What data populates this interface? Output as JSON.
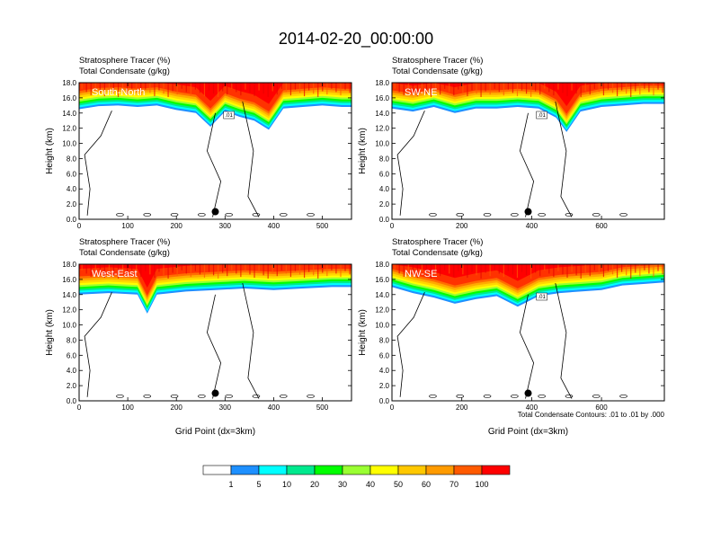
{
  "title": "2014-02-20_00:00:00",
  "footnote": "Total Condensate Contours: .01 to .01 by .000",
  "chart_data": [
    {
      "type": "heatmap",
      "panel_label": "South-North",
      "header": [
        "Stratosphere Tracer   (%)",
        "Total Condensate   (g/kg)"
      ],
      "xlabel": "",
      "ylabel": "Height (km)",
      "xlim": [
        0,
        560
      ],
      "ylim": [
        0,
        18
      ],
      "xticks": [
        0,
        100,
        200,
        300,
        400,
        500
      ],
      "yticks": [
        0,
        2,
        4,
        6,
        8,
        10,
        12,
        14,
        16,
        18
      ],
      "marker_x": 280,
      "contour_label": ".01",
      "tracer_boundary_x": [
        0,
        40,
        80,
        120,
        160,
        200,
        240,
        270,
        300,
        330,
        360,
        390,
        420,
        460,
        500,
        540,
        560
      ],
      "tracer_boundary_km": [
        14.5,
        14.9,
        15.0,
        14.8,
        15.0,
        14.4,
        14.0,
        12.2,
        14.2,
        13.5,
        13.0,
        11.8,
        14.6,
        14.8,
        15.0,
        14.8,
        14.8
      ]
    },
    {
      "type": "heatmap",
      "panel_label": "SW-NE",
      "header": [
        "Stratosphere Tracer   (%)",
        "Total Condensate   (g/kg)"
      ],
      "xlabel": "",
      "ylabel": "Height (km)",
      "xlim": [
        0,
        780
      ],
      "ylim": [
        0,
        18
      ],
      "xticks": [
        0,
        200,
        400,
        600
      ],
      "yticks": [
        0,
        2,
        4,
        6,
        8,
        10,
        12,
        14,
        16,
        18
      ],
      "marker_x": 390,
      "contour_label": ".01",
      "tracer_boundary_x": [
        0,
        60,
        120,
        180,
        240,
        300,
        360,
        420,
        470,
        500,
        540,
        600,
        660,
        720,
        780
      ],
      "tracer_boundary_km": [
        14.6,
        14.2,
        14.8,
        14.0,
        14.6,
        14.6,
        14.8,
        14.6,
        13.4,
        11.5,
        14.2,
        14.8,
        15.0,
        15.2,
        15.2
      ]
    },
    {
      "type": "heatmap",
      "panel_label": "West-East",
      "header": [
        "Stratosphere Tracer   (%)",
        "Total Condensate   (g/kg)"
      ],
      "xlabel": "Grid Point (dx=3km)",
      "ylabel": "Height (km)",
      "xlim": [
        0,
        560
      ],
      "ylim": [
        0,
        18
      ],
      "xticks": [
        0,
        100,
        200,
        300,
        400,
        500
      ],
      "yticks": [
        0,
        2,
        4,
        6,
        8,
        10,
        12,
        14,
        16,
        18
      ],
      "marker_x": 280,
      "contour_label": "",
      "tracer_boundary_x": [
        0,
        60,
        120,
        140,
        160,
        220,
        280,
        340,
        400,
        460,
        520,
        560
      ],
      "tracer_boundary_km": [
        14.0,
        14.2,
        14.0,
        11.5,
        14.0,
        14.4,
        14.6,
        14.8,
        14.6,
        14.8,
        15.0,
        15.0
      ]
    },
    {
      "type": "heatmap",
      "panel_label": "NW-SE",
      "header": [
        "Stratosphere Tracer   (%)",
        "Total Condensate   (g/kg)"
      ],
      "xlabel": "Grid Point (dx=3km)",
      "ylabel": "Height (km)",
      "xlim": [
        0,
        780
      ],
      "ylim": [
        0,
        18
      ],
      "xticks": [
        0,
        200,
        400,
        600
      ],
      "yticks": [
        0,
        2,
        4,
        6,
        8,
        10,
        12,
        14,
        16,
        18
      ],
      "marker_x": 390,
      "contour_label": ".01",
      "tracer_boundary_x": [
        0,
        60,
        120,
        180,
        240,
        300,
        360,
        420,
        480,
        540,
        600,
        660,
        720,
        780
      ],
      "tracer_boundary_km": [
        15.0,
        14.2,
        13.6,
        12.8,
        13.4,
        13.8,
        12.4,
        13.8,
        14.2,
        14.4,
        14.6,
        15.2,
        15.4,
        15.6
      ]
    }
  ],
  "colorbar": {
    "colors": [
      "#ffffff",
      "#1e90ff",
      "#00ffff",
      "#00e98e",
      "#00ff00",
      "#9aff32",
      "#ffff00",
      "#ffc800",
      "#ff9b00",
      "#ff5a00",
      "#ff0000"
    ],
    "labels": [
      "1",
      "5",
      "10",
      "20",
      "30",
      "40",
      "50",
      "60",
      "70",
      "100"
    ]
  }
}
